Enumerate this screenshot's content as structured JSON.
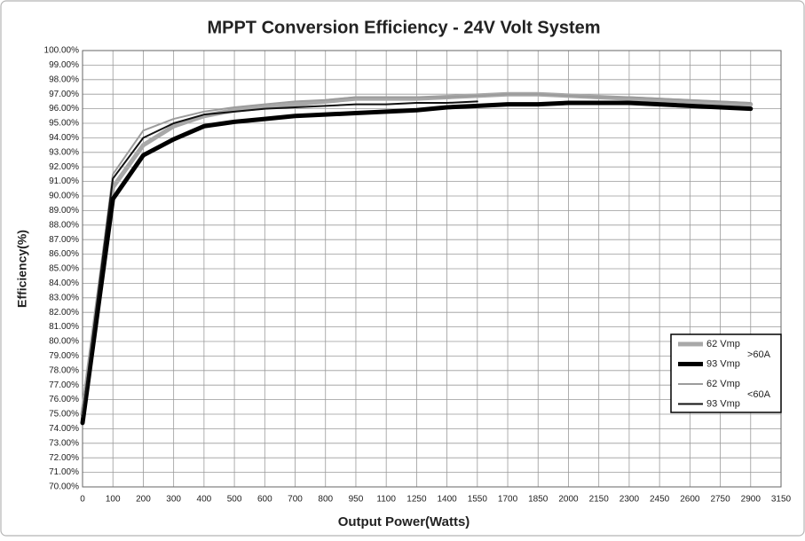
{
  "chart_data": {
    "type": "line",
    "title": "MPPT Conversion Efficiency - 24V Volt System",
    "x_label": "Output Power(Watts)",
    "y_label": "Efficiency(%)",
    "categories": [
      "0",
      "100",
      "200",
      "300",
      "400",
      "500",
      "600",
      "700",
      "800",
      "950",
      "1100",
      "1250",
      "1400",
      "1550",
      "1700",
      "1850",
      "2000",
      "2150",
      "2300",
      "2450",
      "2600",
      "2750",
      "2900",
      "3150"
    ],
    "series": [
      {
        "name": "62 Vmp",
        "color": "#a8a8a8",
        "line_width": 5,
        "values": [
          75.0,
          90.6,
          93.5,
          94.8,
          95.5,
          95.9,
          96.1,
          96.3,
          96.5,
          96.7,
          96.7,
          96.7,
          96.8,
          96.9,
          97.0,
          97.0,
          96.9,
          96.8,
          96.7,
          96.6,
          96.5,
          96.4,
          96.3,
          null
        ]
      },
      {
        "name": "93 Vmp",
        "color": "#000000",
        "line_width": 5,
        "values": [
          74.4,
          89.8,
          92.8,
          93.9,
          94.8,
          95.1,
          95.3,
          95.5,
          95.6,
          95.7,
          95.8,
          95.9,
          96.1,
          96.2,
          96.3,
          96.3,
          96.4,
          96.4,
          96.4,
          96.3,
          96.2,
          96.1,
          96.0,
          null
        ]
      },
      {
        "name": "62 Vmp",
        "color": "#9c9c9c",
        "line_width": 2,
        "values": [
          75.0,
          91.5,
          94.5,
          95.3,
          95.8,
          96.1,
          96.3,
          96.5,
          96.6,
          96.8,
          96.8,
          96.8,
          96.8,
          96.9,
          97.0,
          97.0,
          96.9,
          96.8,
          96.8,
          96.7,
          96.6,
          96.5,
          96.4,
          null
        ]
      },
      {
        "name": "93 Vmp",
        "color": "#111111",
        "line_width": 2,
        "values": [
          74.8,
          91.2,
          94.0,
          95.0,
          95.6,
          95.8,
          96.0,
          96.1,
          96.2,
          96.3,
          96.3,
          96.4,
          96.4,
          96.5,
          null,
          null,
          null,
          null,
          null,
          null,
          null,
          null,
          null,
          null
        ]
      }
    ],
    "legend_groups": [
      ">60A",
      "<60A"
    ],
    "legend_position": "lower right",
    "grid": true,
    "ylim": [
      70,
      100
    ],
    "yticks": [
      {
        "value": 70,
        "label": "70.00%"
      },
      {
        "value": 71,
        "label": "71.00%"
      },
      {
        "value": 72,
        "label": "72.00%"
      },
      {
        "value": 73,
        "label": "73.00%"
      },
      {
        "value": 74,
        "label": "74.00%"
      },
      {
        "value": 75,
        "label": "75.00%"
      },
      {
        "value": 76,
        "label": "76.00%"
      },
      {
        "value": 77,
        "label": "77.00%"
      },
      {
        "value": 78,
        "label": "78.00%"
      },
      {
        "value": 79,
        "label": "79.00%"
      },
      {
        "value": 80,
        "label": "80.00%"
      },
      {
        "value": 81,
        "label": "81.00%"
      },
      {
        "value": 82,
        "label": "82.00%"
      },
      {
        "value": 83,
        "label": "83.00%"
      },
      {
        "value": 84,
        "label": "84.00%"
      },
      {
        "value": 85,
        "label": "85.00%"
      },
      {
        "value": 86,
        "label": "86.00%"
      },
      {
        "value": 87,
        "label": "87.00%"
      },
      {
        "value": 88,
        "label": "88.00%"
      },
      {
        "value": 89,
        "label": "89.00%"
      },
      {
        "value": 90,
        "label": "90.00%"
      },
      {
        "value": 91,
        "label": "91.00%"
      },
      {
        "value": 92,
        "label": "92.00%"
      },
      {
        "value": 93,
        "label": "93.00%"
      },
      {
        "value": 94,
        "label": "94.00%"
      },
      {
        "value": 95,
        "label": "95.00%"
      },
      {
        "value": 96,
        "label": "96.00%"
      },
      {
        "value": 97,
        "label": "97.00%"
      },
      {
        "value": 98,
        "label": "98.00%"
      },
      {
        "value": 99,
        "label": "99.00%"
      },
      {
        "value": 100,
        "label": "100.00%"
      }
    ]
  }
}
